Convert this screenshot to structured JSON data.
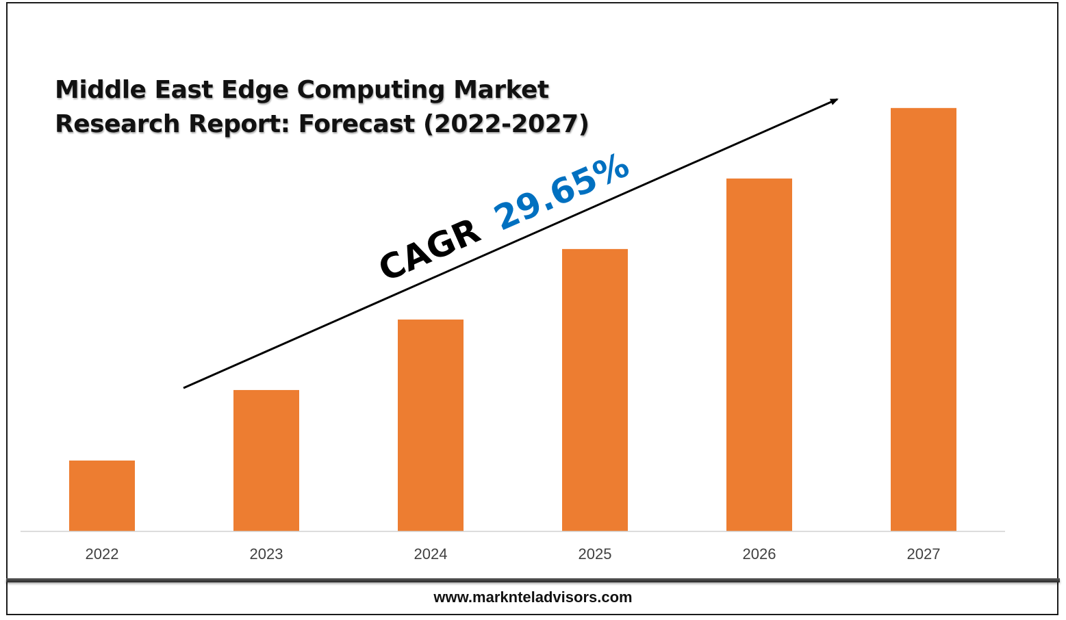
{
  "title": {
    "line1": "Middle East Edge Computing Market",
    "line2": "Research Report: Forecast (2022-2027)"
  },
  "cagr": {
    "label": "CAGR",
    "value": "29.65%"
  },
  "footer": {
    "url": "www.marknteladvisors.com"
  },
  "colors": {
    "bar": "#ED7D31",
    "cagr_value": "#0070C0",
    "axis": "#D0D0D0",
    "text": "#111111"
  },
  "chart_data": {
    "type": "bar",
    "categories": [
      "2022",
      "2023",
      "2024",
      "2025",
      "2026",
      "2027"
    ],
    "values": [
      1,
      2,
      3,
      4,
      5,
      6
    ],
    "ylim": [
      0,
      6.6
    ],
    "xlabel": "",
    "ylabel": "",
    "grid": false,
    "legend": "none"
  }
}
